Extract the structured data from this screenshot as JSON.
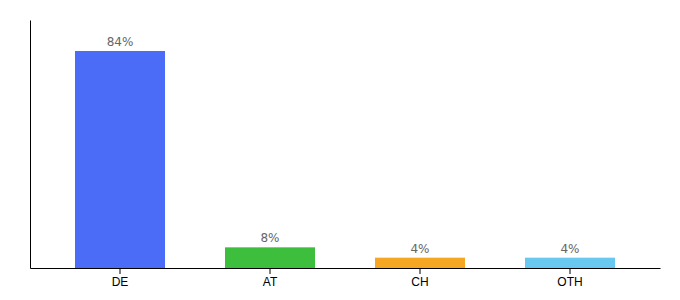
{
  "chart_data": {
    "type": "bar",
    "categories": [
      "DE",
      "AT",
      "CH",
      "OTH"
    ],
    "values": [
      84,
      8,
      4,
      4
    ],
    "value_labels": [
      "84%",
      "8%",
      "4%",
      "4%"
    ],
    "colors": [
      "#4a6cf7",
      "#3dbf3d",
      "#f5a623",
      "#69c8f0"
    ],
    "ylim": [
      0,
      96
    ],
    "data_labels": true,
    "tick_labels": "x",
    "grid": false
  }
}
